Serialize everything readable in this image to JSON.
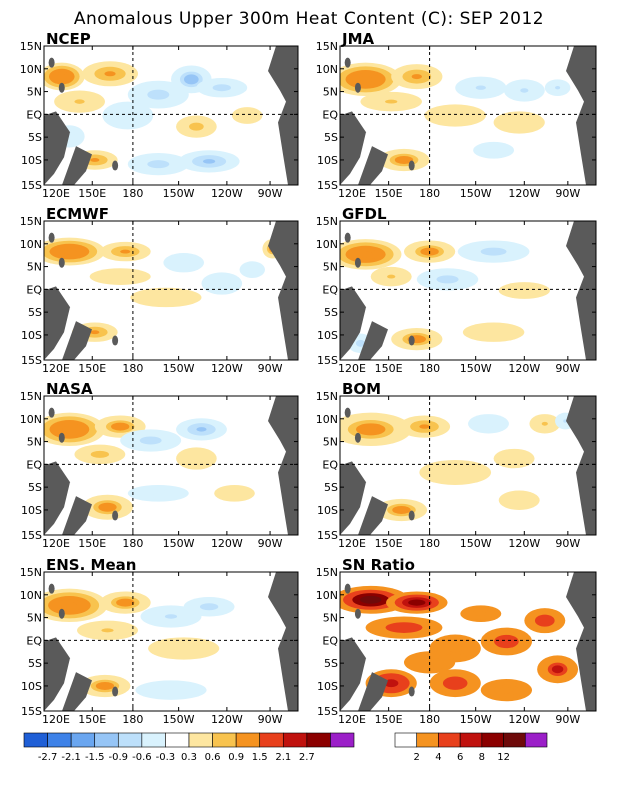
{
  "chart_data": {
    "type": "heatmap",
    "title": "Anomalous Upper 300m Heat Content (C): SEP 2012",
    "x_tick_labels": [
      "120E",
      "150E",
      "180",
      "150W",
      "120W",
      "90W"
    ],
    "y_tick_labels": [
      "15N",
      "10N",
      "5N",
      "EQ",
      "5S",
      "10S",
      "15S"
    ],
    "panels": [
      {
        "label": "NCEP",
        "blobs": [
          [
            0.07,
            0.22,
            0.09,
            0.1,
            1.6
          ],
          [
            0.26,
            0.2,
            0.11,
            0.09,
            1.2
          ],
          [
            0.14,
            0.4,
            0.1,
            0.08,
            0.8
          ],
          [
            0.45,
            0.35,
            0.12,
            0.1,
            -1.0
          ],
          [
            0.58,
            0.24,
            0.08,
            0.1,
            -1.4
          ],
          [
            0.7,
            0.3,
            0.1,
            0.07,
            -0.9
          ],
          [
            0.33,
            0.5,
            0.1,
            0.1,
            -0.5
          ],
          [
            0.6,
            0.58,
            0.08,
            0.08,
            0.9
          ],
          [
            0.8,
            0.5,
            0.06,
            0.06,
            0.5
          ],
          [
            0.2,
            0.82,
            0.09,
            0.07,
            1.2
          ],
          [
            0.45,
            0.85,
            0.12,
            0.08,
            -0.9
          ],
          [
            0.65,
            0.83,
            0.12,
            0.08,
            -1.1
          ],
          [
            0.1,
            0.65,
            0.06,
            0.08,
            -0.5
          ]
        ]
      },
      {
        "label": "JMA",
        "blobs": [
          [
            0.1,
            0.24,
            0.14,
            0.12,
            1.7
          ],
          [
            0.3,
            0.22,
            0.1,
            0.09,
            1.1
          ],
          [
            0.2,
            0.4,
            0.12,
            0.07,
            0.8
          ],
          [
            0.55,
            0.3,
            0.1,
            0.08,
            -0.8
          ],
          [
            0.72,
            0.32,
            0.08,
            0.08,
            -0.8
          ],
          [
            0.45,
            0.5,
            0.12,
            0.08,
            0.5
          ],
          [
            0.7,
            0.55,
            0.1,
            0.08,
            0.5
          ],
          [
            0.25,
            0.82,
            0.1,
            0.08,
            1.5
          ],
          [
            0.6,
            0.75,
            0.08,
            0.06,
            -0.4
          ],
          [
            0.85,
            0.3,
            0.05,
            0.06,
            -0.7
          ]
        ]
      },
      {
        "label": "ECMWF",
        "blobs": [
          [
            0.1,
            0.22,
            0.14,
            0.1,
            1.6
          ],
          [
            0.32,
            0.22,
            0.1,
            0.07,
            1.2
          ],
          [
            0.3,
            0.4,
            0.12,
            0.06,
            0.6
          ],
          [
            0.55,
            0.3,
            0.08,
            0.07,
            -0.6
          ],
          [
            0.48,
            0.55,
            0.14,
            0.07,
            0.4
          ],
          [
            0.7,
            0.45,
            0.08,
            0.08,
            -0.5
          ],
          [
            0.2,
            0.8,
            0.09,
            0.07,
            1.1
          ],
          [
            0.9,
            0.2,
            0.04,
            0.07,
            1.4
          ],
          [
            0.82,
            0.35,
            0.05,
            0.06,
            -0.6
          ]
        ]
      },
      {
        "label": "GFDL",
        "blobs": [
          [
            0.1,
            0.24,
            0.14,
            0.11,
            1.6
          ],
          [
            0.35,
            0.22,
            0.1,
            0.08,
            1.5
          ],
          [
            0.6,
            0.22,
            0.14,
            0.08,
            -1.0
          ],
          [
            0.42,
            0.42,
            0.12,
            0.08,
            -0.9
          ],
          [
            0.2,
            0.4,
            0.08,
            0.07,
            0.7
          ],
          [
            0.72,
            0.5,
            0.1,
            0.06,
            0.4
          ],
          [
            0.3,
            0.85,
            0.1,
            0.08,
            1.4
          ],
          [
            0.08,
            0.88,
            0.05,
            0.07,
            -1.0
          ],
          [
            0.6,
            0.8,
            0.12,
            0.07,
            0.4
          ]
        ]
      },
      {
        "label": "NASA",
        "blobs": [
          [
            0.1,
            0.24,
            0.14,
            0.12,
            1.7
          ],
          [
            0.3,
            0.22,
            0.1,
            0.08,
            1.3
          ],
          [
            0.22,
            0.42,
            0.1,
            0.07,
            0.9
          ],
          [
            0.42,
            0.32,
            0.12,
            0.08,
            -1.0
          ],
          [
            0.62,
            0.24,
            0.1,
            0.08,
            -1.1
          ],
          [
            0.6,
            0.45,
            0.08,
            0.08,
            0.6
          ],
          [
            0.25,
            0.8,
            0.1,
            0.09,
            1.4
          ],
          [
            0.45,
            0.7,
            0.12,
            0.06,
            -0.4
          ],
          [
            0.75,
            0.7,
            0.08,
            0.06,
            0.4
          ]
        ]
      },
      {
        "label": "BOM",
        "blobs": [
          [
            0.12,
            0.24,
            0.16,
            0.12,
            1.5
          ],
          [
            0.33,
            0.22,
            0.1,
            0.08,
            1.1
          ],
          [
            0.58,
            0.2,
            0.08,
            0.07,
            -0.5
          ],
          [
            0.8,
            0.2,
            0.06,
            0.07,
            0.7
          ],
          [
            0.88,
            0.18,
            0.04,
            0.06,
            -0.8
          ],
          [
            0.45,
            0.55,
            0.14,
            0.09,
            0.4
          ],
          [
            0.68,
            0.45,
            0.08,
            0.07,
            0.5
          ],
          [
            0.24,
            0.82,
            0.1,
            0.08,
            1.5
          ],
          [
            0.7,
            0.75,
            0.08,
            0.07,
            0.4
          ]
        ]
      },
      {
        "label": "ENS. Mean",
        "blobs": [
          [
            0.1,
            0.24,
            0.15,
            0.12,
            1.7
          ],
          [
            0.32,
            0.22,
            0.1,
            0.08,
            1.3
          ],
          [
            0.25,
            0.42,
            0.12,
            0.07,
            0.8
          ],
          [
            0.5,
            0.32,
            0.12,
            0.08,
            -0.7
          ],
          [
            0.65,
            0.25,
            0.1,
            0.07,
            -0.9
          ],
          [
            0.55,
            0.55,
            0.14,
            0.08,
            0.4
          ],
          [
            0.24,
            0.82,
            0.1,
            0.08,
            1.4
          ],
          [
            0.5,
            0.85,
            0.14,
            0.07,
            -0.4
          ]
        ]
      },
      {
        "label": "SN Ratio",
        "blobs": [
          [
            0.12,
            0.2,
            0.15,
            0.1,
            12
          ],
          [
            0.3,
            0.22,
            0.12,
            0.08,
            9
          ],
          [
            0.25,
            0.4,
            0.15,
            0.08,
            5
          ],
          [
            0.45,
            0.55,
            0.1,
            0.1,
            4
          ],
          [
            0.65,
            0.5,
            0.1,
            0.1,
            5
          ],
          [
            0.8,
            0.35,
            0.08,
            0.09,
            6
          ],
          [
            0.85,
            0.7,
            0.08,
            0.1,
            7
          ],
          [
            0.2,
            0.8,
            0.1,
            0.1,
            8
          ],
          [
            0.45,
            0.8,
            0.1,
            0.1,
            5
          ],
          [
            0.65,
            0.85,
            0.1,
            0.08,
            4
          ],
          [
            0.55,
            0.3,
            0.08,
            0.06,
            3
          ],
          [
            0.35,
            0.65,
            0.1,
            0.08,
            3
          ]
        ]
      }
    ],
    "legend_left": {
      "labels": [
        "-2.7",
        "-2.1",
        "-1.5",
        "-0.9",
        "-0.6",
        "-0.3",
        "0.3",
        "0.6",
        "0.9",
        "1.5",
        "2.1",
        "2.7"
      ],
      "colors": [
        "#1f5fd6",
        "#3e82e8",
        "#6aa6f0",
        "#96c5f6",
        "#bde0fb",
        "#d9f2fd",
        "#ffffff",
        "#fde6a0",
        "#f8c34e",
        "#f59320",
        "#e8401c",
        "#c0120e",
        "#8b0000",
        "#9b1fc8"
      ]
    },
    "legend_right": {
      "labels": [
        "2",
        "4",
        "6",
        "8",
        "12"
      ],
      "colors": [
        "#ffffff",
        "#f59320",
        "#e8401c",
        "#c0120e",
        "#8b0000",
        "#6e0a0a",
        "#9b1fc8"
      ]
    },
    "land_color": "#5a5a5a"
  }
}
